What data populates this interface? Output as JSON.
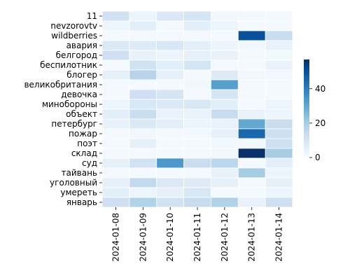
{
  "chart_data": {
    "type": "heatmap",
    "title": "",
    "xlabel": "",
    "ylabel": "",
    "x": [
      "2024-01-08",
      "2024-01-09",
      "2024-01-10",
      "2024-01-11",
      "2024-01-12",
      "2024-01-13",
      "2024-01-14"
    ],
    "y": [
      "11",
      "nevzorovtv",
      "wildberries",
      "авария",
      "белгород",
      "беспилотник",
      "блогер",
      "великобритания",
      "девочка",
      "минобороны",
      "объект",
      "петербург",
      "пожар",
      "поэт",
      "склад",
      "суд",
      "тайвань",
      "уголовный",
      "умереть",
      "январь"
    ],
    "values": [
      [
        11,
        3,
        8,
        10,
        2,
        2,
        1
      ],
      [
        3,
        6,
        1,
        6,
        3,
        1,
        1
      ],
      [
        1,
        1,
        1,
        1,
        1,
        50,
        14
      ],
      [
        8,
        7,
        9,
        6,
        3,
        2,
        4
      ],
      [
        12,
        4,
        3,
        5,
        4,
        1,
        2
      ],
      [
        1,
        11,
        6,
        10,
        1,
        1,
        4
      ],
      [
        5,
        17,
        5,
        1,
        7,
        2,
        2
      ],
      [
        1,
        1,
        1,
        2,
        32,
        1,
        1
      ],
      [
        1,
        12,
        10,
        1,
        10,
        1,
        1
      ],
      [
        3,
        9,
        8,
        9,
        6,
        1,
        3
      ],
      [
        6,
        13,
        4,
        4,
        14,
        4,
        3
      ],
      [
        4,
        8,
        6,
        3,
        4,
        30,
        13
      ],
      [
        1,
        2,
        1,
        2,
        5,
        45,
        12
      ],
      [
        1,
        5,
        1,
        1,
        2,
        2,
        12
      ],
      [
        1,
        1,
        1,
        1,
        2,
        57,
        20
      ],
      [
        5,
        11,
        34,
        13,
        16,
        1,
        6
      ],
      [
        1,
        1,
        1,
        1,
        4,
        20,
        3
      ],
      [
        5,
        15,
        8,
        7,
        5,
        1,
        5
      ],
      [
        6,
        3,
        5,
        9,
        1,
        1,
        3
      ],
      [
        12,
        18,
        11,
        14,
        18,
        4,
        12
      ]
    ],
    "colorbar": {
      "min": 0,
      "max": 57,
      "ticks": [
        0,
        20,
        40
      ],
      "colors": [
        "#f7fbff",
        "#deebf7",
        "#c6dbef",
        "#9ecae1",
        "#6baed6",
        "#4292c6",
        "#2171b5",
        "#08519c",
        "#08306b"
      ]
    },
    "grid": false,
    "legend": "right"
  }
}
